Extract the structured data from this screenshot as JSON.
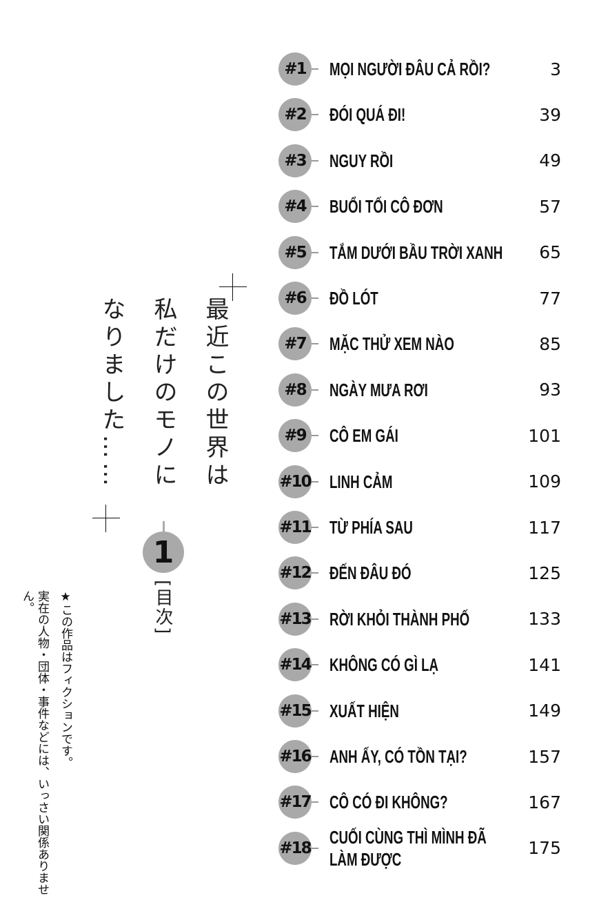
{
  "title": {
    "lines": [
      "最近この世界は",
      "私だけのモノに",
      "なりました……"
    ],
    "volume": "1",
    "section_label": "[目次]"
  },
  "disclaimer": {
    "lines": [
      "★この作品はフィクションです。",
      "実在の人物・団体・事件などには、いっさい関係ありません。"
    ]
  },
  "badge_color": "#a9a9a9",
  "chapters": [
    {
      "num": "#1",
      "title": "MỌI NGƯỜI ĐÂU CẢ RỒI?",
      "page": "3"
    },
    {
      "num": "#2",
      "title": "ĐÓI QUÁ ĐI!",
      "page": "39"
    },
    {
      "num": "#3",
      "title": "NGUY RỒI",
      "page": "49"
    },
    {
      "num": "#4",
      "title": "BUỔI TỐI CÔ ĐƠN",
      "page": "57"
    },
    {
      "num": "#5",
      "title": "TẮM DƯỚI BẦU TRỜI XANH",
      "page": "65"
    },
    {
      "num": "#6",
      "title": "ĐỒ LÓT",
      "page": "77"
    },
    {
      "num": "#7",
      "title": "MẶC THỬ XEM NÀO",
      "page": "85"
    },
    {
      "num": "#8",
      "title": "NGÀY MƯA RƠI",
      "page": "93"
    },
    {
      "num": "#9",
      "title": "CÔ EM GÁI",
      "page": "101"
    },
    {
      "num": "#10",
      "title": "LINH CẢM",
      "page": "109"
    },
    {
      "num": "#11",
      "title": "TỪ PHÍA SAU",
      "page": "117"
    },
    {
      "num": "#12",
      "title": "ĐẾN ĐÂU ĐÓ",
      "page": "125"
    },
    {
      "num": "#13",
      "title": "RỜI KHỎI THÀNH PHỐ",
      "page": "133"
    },
    {
      "num": "#14",
      "title": "KHÔNG CÓ GÌ LẠ",
      "page": "141"
    },
    {
      "num": "#15",
      "title": "XUẤT HIỆN",
      "page": "149"
    },
    {
      "num": "#16",
      "title": "ANH ẤY, CÓ TỒN TẠI?",
      "page": "157"
    },
    {
      "num": "#17",
      "title": "CÔ CÓ ĐI KHÔNG?",
      "page": "167"
    },
    {
      "num": "#18",
      "title": "CUỐI CÙNG THÌ MÌNH ĐÃ LÀM ĐƯỢC",
      "page": "175"
    }
  ]
}
